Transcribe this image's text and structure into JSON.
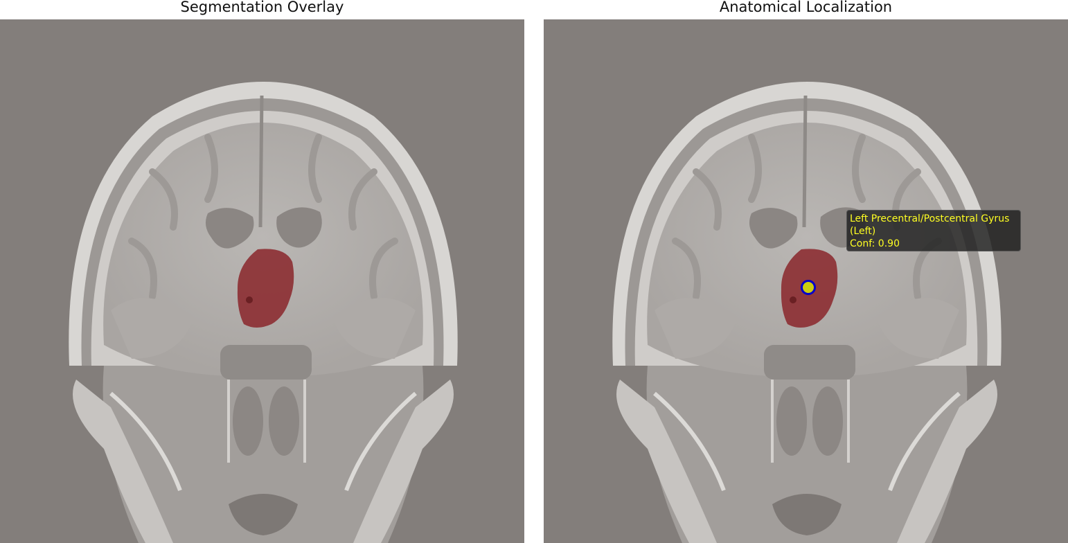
{
  "panels": [
    {
      "title": "Segmentation Overlay"
    },
    {
      "title": "Anatomical Localization"
    }
  ],
  "localization": {
    "region_line1": "Left Precentral/Postcentral Gyrus",
    "region_line2": "(Left)",
    "confidence_text": "Conf: 0.90",
    "confidence": 0.9
  },
  "colors": {
    "background_tissue": "#837e7b",
    "brain_tissue": "#b6b3b0",
    "ventricle": "#8b8683",
    "segmentation": "#8b2a2f",
    "marker_fill": "#cccc11",
    "marker_ring": "#0000cc",
    "label_text": "#ffff22"
  }
}
